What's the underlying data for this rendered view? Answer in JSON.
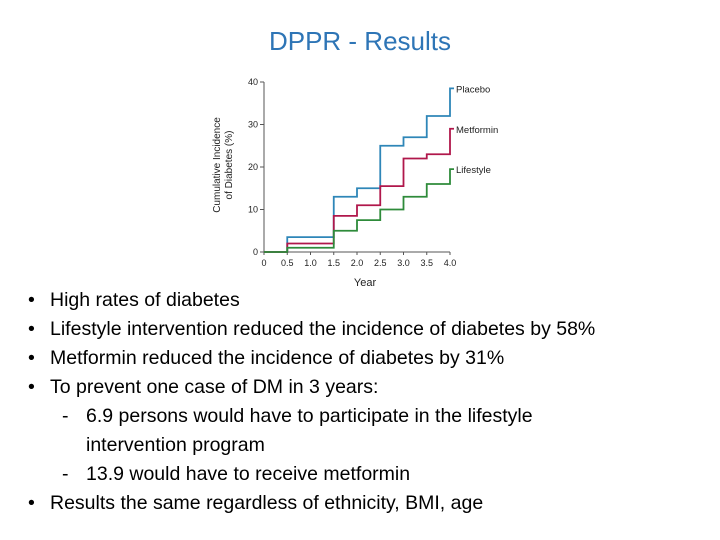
{
  "slide": {
    "title": "DPPR - Results"
  },
  "chart_data": {
    "type": "line",
    "step": true,
    "ylabel_line1": "Cumulative Incidence",
    "ylabel_line2": "of Diabetes (%)",
    "xlabel": "Year",
    "xlim": [
      0,
      4.0
    ],
    "ylim": [
      0,
      40
    ],
    "x_ticks": [
      0,
      0.5,
      1.0,
      1.5,
      2.0,
      2.5,
      3.0,
      3.5,
      4.0
    ],
    "x_tick_labels": [
      "0",
      "0.5",
      "1.0",
      "1.5",
      "2.0",
      "2.5",
      "3.0",
      "3.5",
      "4.0"
    ],
    "y_ticks": [
      0,
      10,
      20,
      30,
      40
    ],
    "y_tick_labels": [
      "0",
      "10",
      "20",
      "30",
      "40"
    ],
    "series": [
      {
        "name": "Placebo",
        "color": "#2e86b8",
        "x": [
          0,
          0.5,
          1.0,
          1.5,
          2.0,
          2.5,
          3.0,
          3.5,
          4.0
        ],
        "y": [
          0,
          3.5,
          3.5,
          13,
          15,
          25,
          27,
          32,
          38.5
        ]
      },
      {
        "name": "Metformin",
        "color": "#b0174b",
        "x": [
          0,
          0.5,
          1.0,
          1.5,
          2.0,
          2.5,
          3.0,
          3.5,
          4.0
        ],
        "y": [
          0,
          2,
          2,
          8.5,
          11,
          15.5,
          22,
          23,
          29
        ]
      },
      {
        "name": "Lifestyle",
        "color": "#2e8b3a",
        "x": [
          0,
          0.5,
          1.0,
          1.5,
          2.0,
          2.5,
          3.0,
          3.5,
          4.0
        ],
        "y": [
          0,
          1,
          1,
          5,
          7.5,
          10,
          13,
          16,
          19.5
        ]
      }
    ]
  },
  "bullets": [
    "High rates of diabetes",
    "Lifestyle intervention reduced the incidence of diabetes by 58%",
    "Metformin reduced the incidence of diabetes by 31%",
    "To prevent one case of DM in 3 years:"
  ],
  "sub_bullets": [
    {
      "line1": "6.9 persons would have to participate in the lifestyle",
      "line2": "intervention program"
    },
    {
      "line1": "13.9 would have to receive metformin"
    }
  ],
  "last_bullet": "Results the same regardless of ethnicity, BMI, age",
  "bullet_glyph": "•",
  "dash_glyph": "-"
}
